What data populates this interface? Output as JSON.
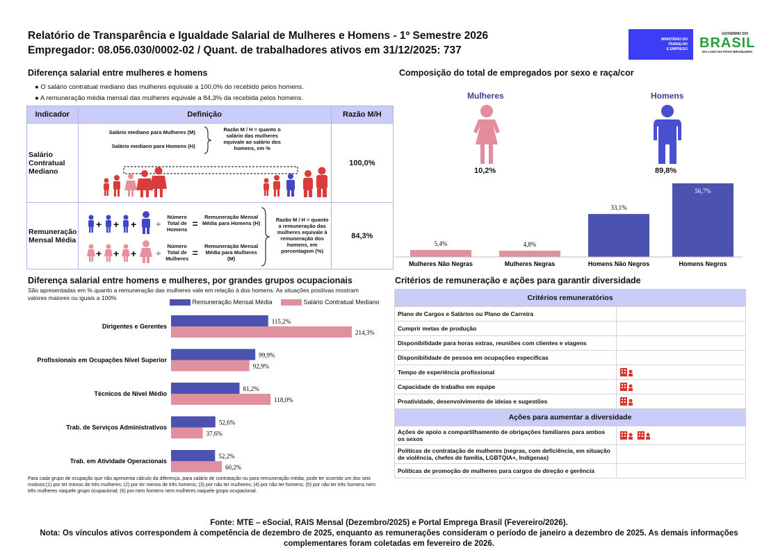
{
  "header": {
    "title_line1": "Relatório de Transparência e Igualdade Salarial de Mulheres e Homens - 1º Semestre 2026",
    "title_line2": "Empregador: 08.056.030/0002-02 / Quant. de trabalhadores ativos em 31/12/2025: 737",
    "mte_logo": [
      "MINISTÉRIO DO",
      "TRABALHO",
      "E EMPREGO"
    ],
    "gov_logo_top": "GOVERNO DO",
    "gov_logo_main": "BRASIL",
    "gov_logo_bottom": "DO LADO DO POVO BRASILEIRO"
  },
  "diff": {
    "title": "Diferença salarial entre mulheres e homens",
    "bullet1": "O salário contratual mediano das mulheres equivale a 100,0% do recebido pelos homens.",
    "bullet2": "A remuneração média mensal das mulheres equivale a 84,3% da recebida pelos homens.",
    "col_indicador": "Indicador",
    "col_definicao": "Definição",
    "col_razao": "Razão M/H",
    "row1": {
      "indicador": "Salário Contratual Mediano",
      "def_m": "Salário mediano para Mulheres (M)",
      "def_h": "Salário mediano para Homens (H)",
      "razao_desc": "Razão M / H = quanto o salário das mulheres equivale ao salário dos homens, em %",
      "value": "100,0%"
    },
    "row2": {
      "indicador": "Remuneração Mensal Média",
      "num_total_h": "Número Total de Homens",
      "rem_h": "Remuneração Mensal Média para Homens (H)",
      "num_total_m": "Número Total de Mulheres",
      "rem_m": "Remuneração Mensal Média para Mulheres (M)",
      "razao_desc": "Razão M / H = quanto a remuneração das mulheres equivale à remuneração dos homens, em porcentagem (%)",
      "value": "84,3%"
    }
  },
  "composition": {
    "title": "Composição do total de empregados por sexo e raça/cor",
    "women_label": "Mulheres",
    "women_pct": "10,2%",
    "men_label": "Homens",
    "men_pct": "89,8%",
    "colors": {
      "women": "#e28c9c",
      "men": "#4a4ed0",
      "bar_women": "#e0919e",
      "bar_men": "#4b52b0"
    }
  },
  "chart_data": [
    {
      "type": "bar",
      "categories": [
        "Mulheres Não Negras",
        "Mulheres Negras",
        "Homens Não Negros",
        "Homens Negros"
      ],
      "values": [
        5.4,
        4.8,
        33.1,
        56.7
      ],
      "value_labels": [
        "5,4%",
        "4,8%",
        "33,1%",
        "56,7%"
      ]
    },
    {
      "type": "bar",
      "orientation": "horizontal",
      "title": "Diferença salarial entre homens e mulheres, por grandes grupos ocupacionais",
      "subtitle": "São apresentadas em % quanto a remuneração das mulheres vale em relação à dos homens. As situações positivas mostram valores maiores ou iguais a 100%",
      "categories": [
        "Dirigentes e Gerentes",
        "Profissionais em Ocupações Nível Superior",
        "Técnicos de Nível Médio",
        "Trab. de Serviços Administrativos",
        "Trab. em Atividade Operacionais"
      ],
      "series": [
        {
          "name": "Remuneração Mensal Média",
          "color": "#4b52b0",
          "values": [
            115.2,
            99.9,
            81.2,
            52.6,
            52.2
          ],
          "labels": [
            "115,2%",
            "99,9%",
            "81,2%",
            "52,6%",
            "52,2%"
          ]
        },
        {
          "name": "Salário Contratual Mediano",
          "color": "#e0919e",
          "values": [
            214.3,
            92.9,
            118.0,
            37.6,
            60.2
          ],
          "labels": [
            "214,3%",
            "92,9%",
            "118,0%",
            "37,6%",
            "60,2%"
          ]
        }
      ],
      "footnote": "Para cada grupo de ocupação que não apresenta cálculo da diferença, para salário de contratação ou para remuneração média, pode ter ocorrido um dos seis motivos:(1) por ter menos de três mulheres; (2) por ter menos de três homens; (3) por não ter mulheres; (4) por não ter homens; (5) por não ter três homens nem três mulheres naquele grupo ocupacional; (6) por nem homens nem mulheres naquele grupo ocupacional."
    }
  ],
  "criteria": {
    "title": "Critérios de remuneração e ações para garantir diversidade",
    "rem_header": "Critérios remuneratórios",
    "rem_items": [
      {
        "label": "Plano de Cargos e Salários ou Plano de Carreira",
        "icons": 0
      },
      {
        "label": "Cumprir metas de produção",
        "icons": 0
      },
      {
        "label": "Disponibilidade para horas extras, reuniões com clientes e viagens",
        "icons": 0
      },
      {
        "label": "Disponibilidade de pessoa em ocupações específicas",
        "icons": 0
      },
      {
        "label": "Tempo de experiência profissional",
        "icons": 1
      },
      {
        "label": "Capacidade de trabalho em equipe",
        "icons": 1
      },
      {
        "label": "Proatividade, desenvolvimento de ideias e sugestões",
        "icons": 1
      }
    ],
    "div_header": "Ações para aumentar a diversidade",
    "div_items": [
      {
        "label": "Ações de apoio a compartilhamento de obrigações familiares para ambos os sexos",
        "icons": 2
      },
      {
        "label": "Políticas de contratação de mulheres (negras, com deficiência, em situação de violência, chefes de família, LGBTQIA+, Indígenas)",
        "icons": 0
      },
      {
        "label": "Políticas de promoção de mulheres para cargos de direção e gerência",
        "icons": 0
      }
    ],
    "icon_color": "#d9342b"
  },
  "footer": {
    "fonte": "Fonte: MTE – eSocial, RAIS Mensal (Dezembro/2025) e Portal Emprega Brasil (Fevereiro/2026).",
    "nota": "Nota: Os vínculos ativos correspondem à competência de dezembro de 2025, enquanto as remunerações consideram o período de janeiro a dezembro de 2025. As demais informações complementares foram coletadas em fevereiro de 2026."
  }
}
